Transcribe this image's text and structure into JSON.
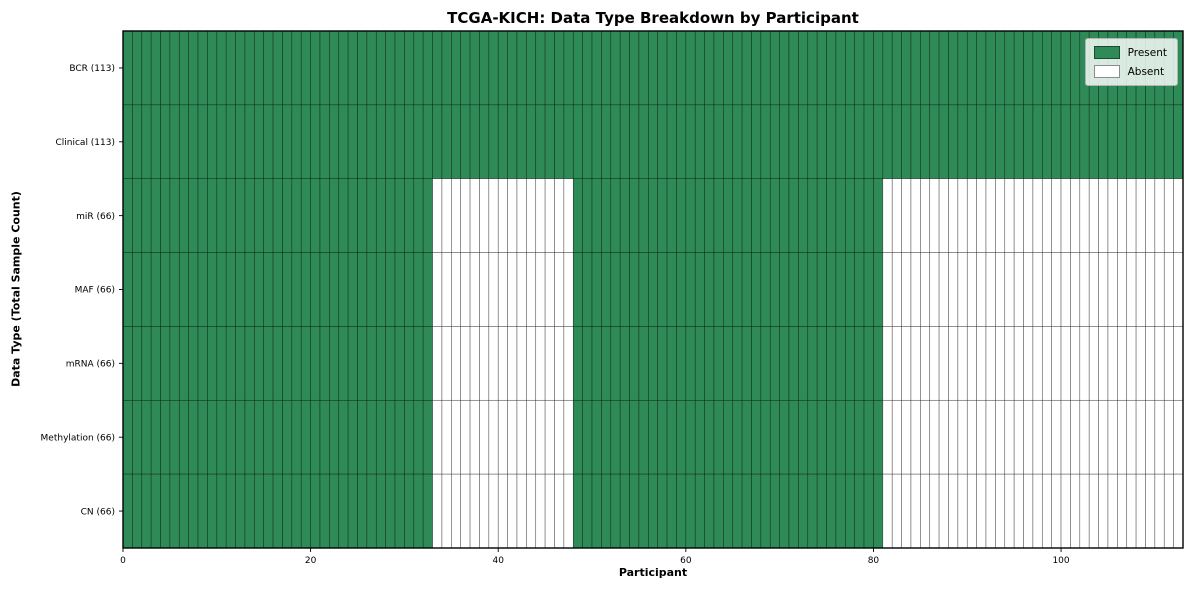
{
  "chart_data": {
    "type": "heatmap",
    "title": "TCGA-KICH: Data Type Breakdown by Participant",
    "xlabel": "Participant",
    "ylabel": "Data Type (Total Sample Count)",
    "n_participants": 113,
    "xlim": [
      0,
      113
    ],
    "xticks": [
      0,
      20,
      40,
      60,
      80,
      100
    ],
    "grid": "per-cell edges",
    "rows": [
      {
        "label": "BCR (113)",
        "name": "BCR",
        "total_samples": 113,
        "present_ranges": [
          [
            0,
            113
          ]
        ]
      },
      {
        "label": "Clinical (113)",
        "name": "Clinical",
        "total_samples": 113,
        "present_ranges": [
          [
            0,
            113
          ]
        ]
      },
      {
        "label": "miR (66)",
        "name": "miR",
        "total_samples": 66,
        "present_ranges": [
          [
            0,
            33
          ],
          [
            48,
            81
          ]
        ]
      },
      {
        "label": "MAF (66)",
        "name": "MAF",
        "total_samples": 66,
        "present_ranges": [
          [
            0,
            33
          ],
          [
            48,
            81
          ]
        ]
      },
      {
        "label": "mRNA (66)",
        "name": "mRNA",
        "total_samples": 66,
        "present_ranges": [
          [
            0,
            33
          ],
          [
            48,
            81
          ]
        ]
      },
      {
        "label": "Methylation (66)",
        "name": "Methylation",
        "total_samples": 66,
        "present_ranges": [
          [
            0,
            33
          ],
          [
            48,
            81
          ]
        ]
      },
      {
        "label": "CN (66)",
        "name": "CN",
        "total_samples": 66,
        "present_ranges": [
          [
            0,
            33
          ],
          [
            48,
            81
          ]
        ]
      }
    ],
    "legend": {
      "position": "upper right",
      "entries": [
        {
          "label": "Present",
          "color": "#2e8b57"
        },
        {
          "label": "Absent",
          "color": "#ffffff"
        }
      ]
    },
    "colors": {
      "present": "#2e8b57",
      "absent": "#ffffff",
      "cell_edge": "rgba(0,0,0,0.55)",
      "axis": "#000000",
      "background": "#ffffff"
    }
  }
}
